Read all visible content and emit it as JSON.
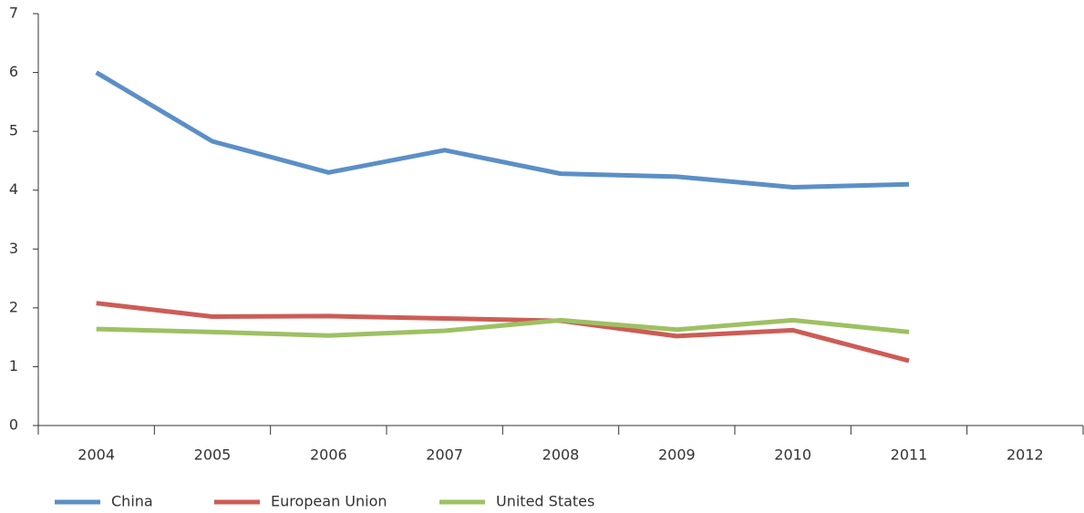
{
  "chart_data": {
    "type": "line",
    "categories": [
      "2004",
      "2005",
      "2006",
      "2007",
      "2008",
      "2009",
      "2010",
      "2011",
      "2012"
    ],
    "series": [
      {
        "name": "China",
        "color": "#5b8fc7",
        "values": [
          6.0,
          4.83,
          4.3,
          4.68,
          4.28,
          4.23,
          4.05,
          4.1,
          null
        ]
      },
      {
        "name": "European Union",
        "color": "#cd5c55",
        "values": [
          2.08,
          1.85,
          1.86,
          1.82,
          1.78,
          1.52,
          1.62,
          1.1,
          null
        ]
      },
      {
        "name": "United States",
        "color": "#9dc162",
        "values": [
          1.64,
          1.59,
          1.53,
          1.61,
          1.79,
          1.63,
          1.79,
          1.59,
          null
        ]
      }
    ],
    "ylim": [
      0,
      7
    ],
    "yticks": [
      0,
      1,
      2,
      3,
      4,
      5,
      6,
      7
    ],
    "grid": false,
    "legend": "bottom-left"
  }
}
